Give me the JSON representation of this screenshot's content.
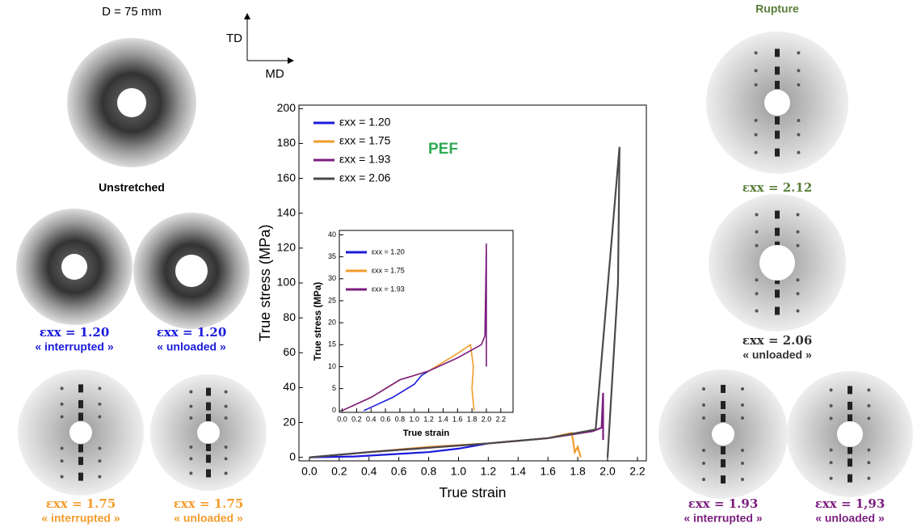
{
  "chart_data": [
    {
      "type": "line",
      "xlabel": "True strain",
      "ylabel": "True stress (MPa)",
      "annotation": "PEF",
      "xlim": [
        -0.07,
        2.26
      ],
      "ylim": [
        -2,
        202
      ],
      "xticks": [
        {
          "value": 0,
          "label": "0.0"
        },
        0.2,
        0.4,
        0.6,
        0.8,
        {
          "value": 1,
          "label": "1.0"
        },
        1.2,
        1.4,
        1.6,
        1.8,
        {
          "value": 2,
          "label": "2.0"
        },
        2.2
      ],
      "yticks": [
        0,
        20,
        40,
        60,
        80,
        100,
        120,
        140,
        160,
        180,
        200
      ],
      "series": [
        {
          "name": "εxx = 1.20",
          "color": "#1a1adb",
          "x": [
            0,
            0.3,
            0.6,
            0.8,
            1.0,
            1.1,
            1.2
          ],
          "values": [
            0,
            0.5,
            2,
            3,
            5,
            6.5,
            8
          ]
        },
        {
          "name": "εxx = 1.75",
          "color": "#f39c2b",
          "x": [
            0,
            0.4,
            0.8,
            1.2,
            1.6,
            1.76,
            1.78,
            1.8,
            1.82
          ],
          "values": [
            0,
            3,
            6,
            8,
            11,
            14,
            3,
            6,
            0
          ]
        },
        {
          "name": "εxx = 1.93",
          "color": "#7b1e7e",
          "x": [
            0,
            0.4,
            0.8,
            1.2,
            1.6,
            1.9,
            1.96,
            1.97,
            1.97
          ],
          "values": [
            0,
            3,
            5.5,
            8,
            11,
            15,
            17,
            37,
            10
          ]
        },
        {
          "name": "εxx = 2.06",
          "color": "#4a4a4a",
          "x": [
            0,
            0.4,
            0.8,
            1.2,
            1.6,
            1.92,
            2.08,
            2.07,
            2.0
          ],
          "values": [
            0,
            3,
            5.5,
            8,
            11,
            16,
            178,
            100,
            0
          ]
        }
      ]
    },
    {
      "type": "line",
      "xlabel": "True strain",
      "ylabel": "True stress (MPa)",
      "xlim": [
        -0.04,
        2.37
      ],
      "ylim": [
        -0.4,
        41
      ],
      "xticks": [
        {
          "value": 0,
          "label": "0.0"
        },
        0.2,
        0.4,
        0.6,
        0.8,
        {
          "value": 1,
          "label": "1.0"
        },
        1.2,
        1.4,
        1.6,
        1.8,
        {
          "value": 2,
          "label": "2.0"
        },
        2.2
      ],
      "yticks": [
        0,
        5,
        10,
        15,
        20,
        25,
        30,
        35,
        40
      ],
      "series": [
        {
          "name": "εxx = 1.20",
          "color": "#1a1adb",
          "x": [
            0.3,
            0.5,
            0.7,
            0.9,
            1.0,
            1.1,
            1.2
          ],
          "values": [
            0,
            1.5,
            3,
            5,
            6,
            8,
            9
          ]
        },
        {
          "name": "εxx = 1.75",
          "color": "#f39c2b",
          "x": [
            0,
            0.4,
            0.8,
            1.2,
            1.6,
            1.78,
            1.82,
            1.8,
            1.83
          ],
          "values": [
            0,
            3,
            7,
            9,
            13,
            15,
            10,
            5,
            0
          ]
        },
        {
          "name": "εxx = 1.93",
          "color": "#7b1e7e",
          "x": [
            0,
            0.4,
            0.8,
            1.2,
            1.6,
            1.93,
            1.98,
            2.0,
            2.0
          ],
          "values": [
            0,
            3,
            7,
            9,
            12,
            15,
            17,
            38,
            10
          ]
        }
      ]
    }
  ],
  "figure": {
    "scale": "D = 75 mm",
    "axes": {
      "vertical": "TD",
      "horizontal": "MD"
    },
    "patterns": [
      {
        "caption": "Unstretched"
      },
      {
        "label": "εxx = 1.20",
        "note": "« interrupted »"
      },
      {
        "label": "εxx = 1.20",
        "note": "« unloaded »"
      },
      {
        "label": "εxx = 1.75",
        "note": "« interrupted »"
      },
      {
        "label": "εxx = 1.75",
        "note": "« unloaded »"
      },
      {
        "caption": "Rupture",
        "label": "εxx = 2.12"
      },
      {
        "label": "εxx = 2.06",
        "note": "« unloaded »"
      },
      {
        "label": "εxx = 1.93",
        "note": "« interrupted »"
      },
      {
        "label": "εxx = 1,93",
        "note": "« unloaded »"
      }
    ]
  }
}
